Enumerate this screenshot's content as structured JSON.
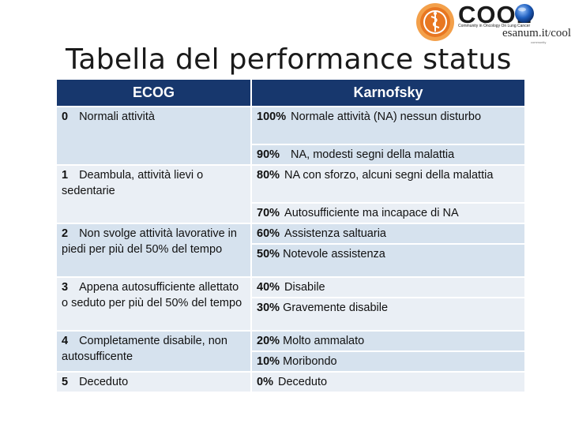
{
  "logo": {
    "brand": "COOL",
    "tagline": "Community in Oncology On Lung Cancer",
    "partner": "esanum.it",
    "partner_suffix": "cool",
    "partner_note": "community"
  },
  "title": "Tabella del performance status",
  "table": {
    "headers": [
      "ECOG",
      "Karnofsky"
    ],
    "ecog": [
      {
        "num": "0",
        "text": "Normali attività"
      },
      {
        "num": "1",
        "text": "Deambula, attività lievi o sedentarie"
      },
      {
        "num": "2",
        "text": "Non svolge attività lavorative in piedi per più del 50% del tempo"
      },
      {
        "num": "3",
        "text": "Appena autosufficiente allettato o seduto per più del 50% del tempo"
      },
      {
        "num": "4",
        "text": "Completamente disabile, non autosufficente"
      },
      {
        "num": "5",
        "text": "Deceduto"
      }
    ],
    "karnofsky": [
      {
        "pct": "100%",
        "text": "Normale attività (NA) nessun disturbo"
      },
      {
        "pct": "90%",
        "text": "NA, modesti segni della malattia"
      },
      {
        "pct": "80%",
        "text": "NA con sforzo, alcuni segni della malattia"
      },
      {
        "pct": "70%",
        "text": "Autosufficiente ma incapace di NA"
      },
      {
        "pct": "60%",
        "text": "Assistenza saltuaria"
      },
      {
        "pct": "50%",
        "text": "Notevole assistenza"
      },
      {
        "pct": "40%",
        "text": "Disabile"
      },
      {
        "pct": "30%",
        "text": "Gravemente disabile"
      },
      {
        "pct": "20%",
        "text": "Molto ammalato"
      },
      {
        "pct": "10%",
        "text": "Moribondo"
      },
      {
        "pct": "0%",
        "text": "Deceduto"
      }
    ]
  },
  "colors": {
    "header_bg": "#17376d",
    "row_light": "#d6e2ee",
    "row_white": "#eaeff5",
    "logo_orange": "#e87722",
    "logo_blue": "#1f5fbf"
  },
  "icons": [
    "caduceus-icon",
    "globe-icon"
  ]
}
